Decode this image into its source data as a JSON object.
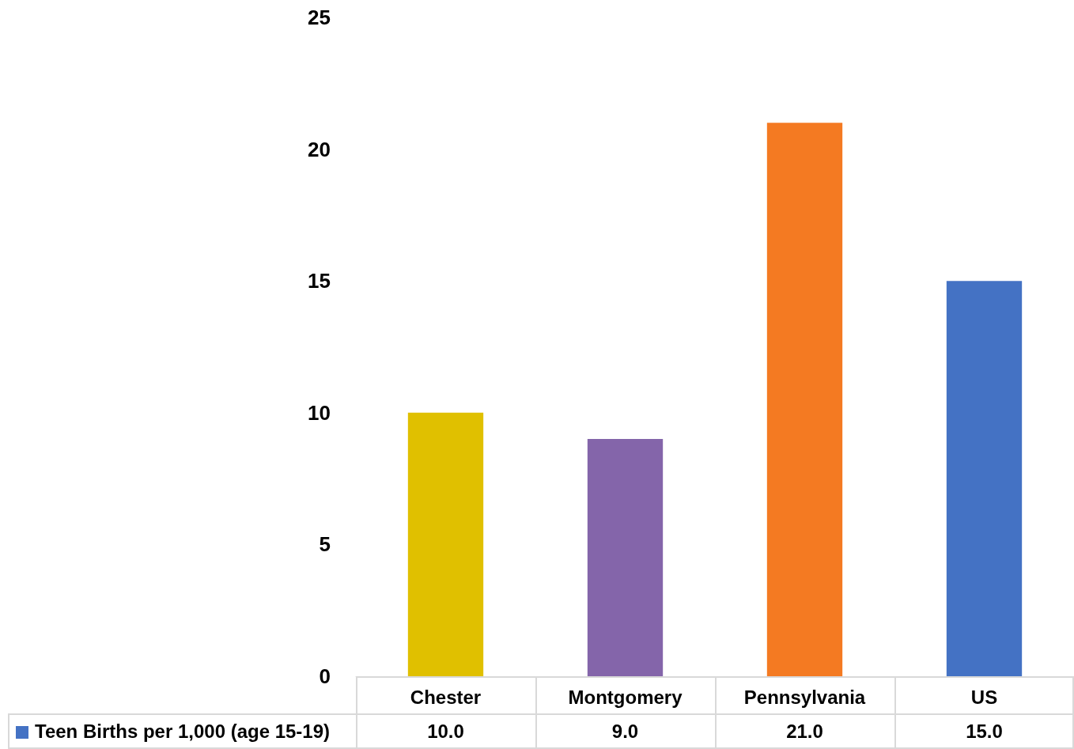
{
  "chart_data": {
    "type": "bar",
    "categories": [
      "Chester",
      "Montgomery",
      "Pennsylvania",
      "US"
    ],
    "series": [
      {
        "name": "Teen Births per 1,000 (age 15-19)",
        "color": "#4472c4",
        "colors": [
          "#e0c000",
          "#8465aa",
          "#f47a22",
          "#4472c4"
        ],
        "values": [
          10,
          9,
          21,
          15
        ],
        "value_labels": [
          "10.0",
          "9.0",
          "21.0",
          "15.0"
        ]
      }
    ],
    "ylim": [
      0,
      25
    ],
    "yticks": [
      0,
      5,
      10,
      15,
      20,
      25
    ],
    "grid": false,
    "legend": "bottom"
  }
}
